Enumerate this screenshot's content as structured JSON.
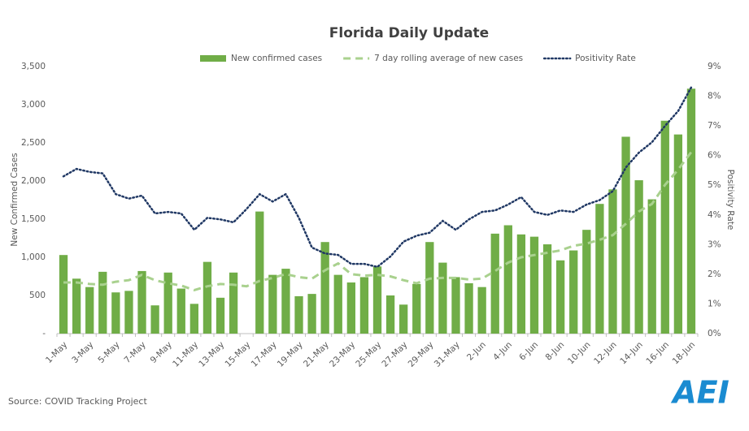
{
  "chart_data": {
    "type": "bar-line",
    "title": "Florida Daily Update",
    "y_label": "New Confirmed Cases",
    "y2_label": "Positivity Rate",
    "source": "Source: COVID Tracking Project",
    "logo": "AEI",
    "categories": [
      "1-May",
      null,
      "3-May",
      null,
      "5-May",
      null,
      "7-May",
      null,
      "9-May",
      null,
      "11-May",
      null,
      "13-May",
      null,
      "15-May",
      null,
      "17-May",
      null,
      "19-May",
      null,
      "21-May",
      null,
      "23-May",
      null,
      "25-May",
      null,
      "27-May",
      null,
      "29-May",
      null,
      "31-May",
      null,
      "2-Jun",
      null,
      "4-Jun",
      null,
      "6-Jun",
      null,
      "8-Jun",
      null,
      "10-Jun",
      null,
      "12-Jun",
      null,
      "14-Jun",
      null,
      "16-Jun",
      null,
      "18-Jun"
    ],
    "series": [
      {
        "name": "New confirmed cases",
        "type": "bar",
        "color": "#70ad47",
        "values": [
          1030,
          720,
          610,
          810,
          540,
          560,
          820,
          370,
          800,
          590,
          390,
          940,
          470,
          800,
          0,
          1600,
          770,
          850,
          490,
          520,
          1200,
          770,
          670,
          740,
          880,
          500,
          380,
          650,
          1200,
          930,
          740,
          660,
          610,
          1310,
          1420,
          1300,
          1270,
          1170,
          960,
          1090,
          1360,
          1700,
          1890,
          2580,
          2010,
          1760,
          2790,
          2610,
          3210
        ]
      },
      {
        "name": "7 day rolling average of new cases",
        "type": "line",
        "style": "dashed",
        "color": "#a9d18e",
        "values": [
          670,
          670,
          650,
          640,
          680,
          700,
          770,
          700,
          660,
          630,
          570,
          620,
          650,
          640,
          620,
          690,
          730,
          780,
          740,
          720,
          830,
          920,
          780,
          760,
          770,
          750,
          700,
          660,
          720,
          730,
          730,
          710,
          720,
          820,
          930,
          1000,
          1030,
          1060,
          1090,
          1150,
          1180,
          1230,
          1290,
          1440,
          1600,
          1700,
          1950,
          2150,
          2380
        ]
      },
      {
        "name": "Positivity Rate",
        "type": "line",
        "style": "dotted",
        "color": "#203864",
        "axis": "y2",
        "values": [
          5.3,
          5.55,
          5.45,
          5.4,
          4.7,
          4.55,
          4.65,
          4.05,
          4.1,
          4.05,
          3.5,
          3.9,
          3.85,
          3.75,
          4.2,
          4.7,
          4.45,
          4.7,
          3.9,
          2.9,
          2.7,
          2.65,
          2.35,
          2.35,
          2.25,
          2.6,
          3.1,
          3.3,
          3.4,
          3.8,
          3.5,
          3.85,
          4.1,
          4.15,
          4.35,
          4.6,
          4.1,
          4.0,
          4.15,
          4.1,
          4.35,
          4.5,
          4.8,
          5.6,
          6.1,
          6.45,
          7.0,
          7.5,
          8.3
        ]
      }
    ],
    "ylim": [
      0,
      3500
    ],
    "yticks": [
      {
        "value": 0,
        "label": "-"
      },
      500,
      {
        "value": 1000,
        "label": "1,000"
      },
      {
        "value": 1500,
        "label": "1,500"
      },
      {
        "value": 2000,
        "label": "2,000"
      },
      {
        "value": 2500,
        "label": "2,500"
      },
      {
        "value": 3000,
        "label": "3,000"
      },
      {
        "value": 3500,
        "label": "3,500"
      }
    ],
    "y2lim": [
      0,
      9
    ],
    "y2ticks": [
      {
        "value": 0,
        "label": "0%"
      },
      {
        "value": 1,
        "label": "1%"
      },
      {
        "value": 2,
        "label": "2%"
      },
      {
        "value": 3,
        "label": "3%"
      },
      {
        "value": 4,
        "label": "4%"
      },
      {
        "value": 5,
        "label": "5%"
      },
      {
        "value": 6,
        "label": "6%"
      },
      {
        "value": 7,
        "label": "7%"
      },
      {
        "value": 8,
        "label": "8%"
      },
      {
        "value": 9,
        "label": "9%"
      }
    ],
    "grid": false,
    "legend": "top"
  }
}
